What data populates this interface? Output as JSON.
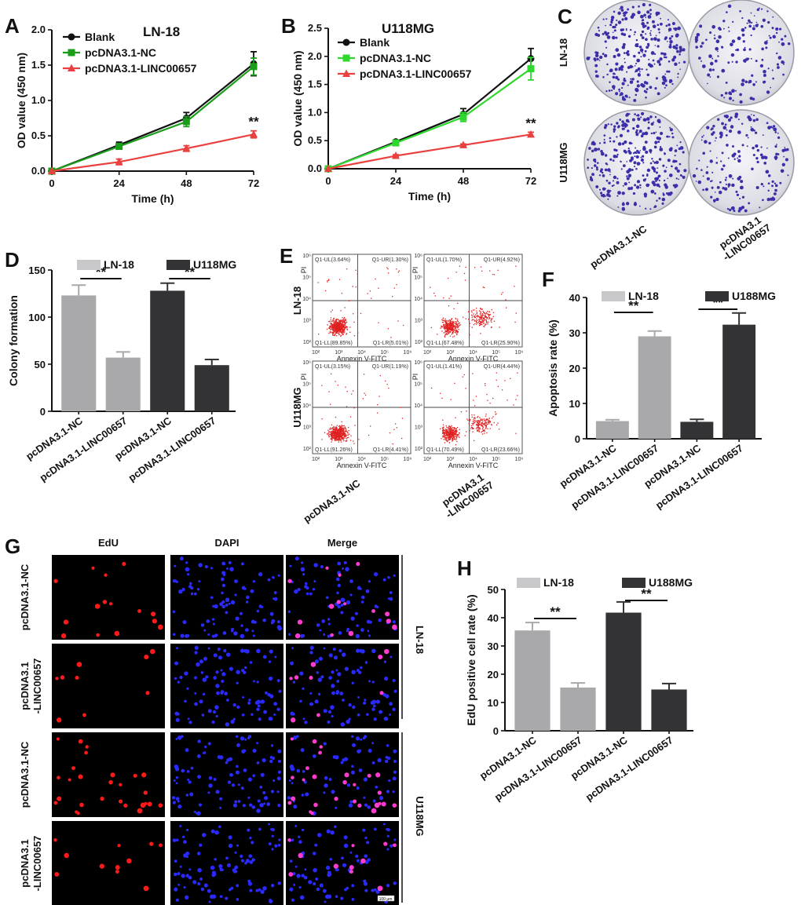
{
  "panels": {
    "A": "A",
    "B": "B",
    "C": "C",
    "D": "D",
    "E": "E",
    "F": "F",
    "G": "G",
    "H": "H"
  },
  "colors": {
    "blank": "#111111",
    "nc": "#1a9e1a",
    "linc": "#e8413f",
    "bar_light": "#a9a9ac",
    "bar_dark": "#333336",
    "crystal": "#3a2fa8",
    "plate": "#e4e4ea",
    "edu": "#ff1a1a",
    "dapi": "#2a2aff",
    "merge": "#ff3ccf"
  },
  "panelC": {
    "row_labels": [
      "LN-18",
      "U118MG"
    ],
    "col_labels": [
      "pcDNA3.1-NC",
      "pcDNA3.1\n-LINC00657"
    ],
    "colony_density": [
      [
        0.9,
        0.45
      ],
      [
        0.95,
        0.55
      ]
    ]
  },
  "panelE": {
    "row_labels": [
      "LN-18",
      "U118MG"
    ],
    "col_labels": [
      "pcDNA3.1-NC",
      "pcDNA3.1\n-LINC00657"
    ],
    "x_axis": "Annexin V-FITC",
    "y_axis": "PI",
    "ticks": [
      "10²",
      "10³",
      "10⁴",
      "10⁵",
      "10⁶"
    ],
    "quadrants": [
      [
        {
          "ul": "Q1-UL(3.64%)",
          "ur": "Q1-UR(1.30%)",
          "ll": "Q1-LL(89.85%)",
          "lr": "Q1-LR(5.01%)"
        },
        {
          "ul": "Q1-UL(1.70%)",
          "ur": "Q1-UR(4.92%)",
          "ll": "Q1-LL(67.48%)",
          "lr": "Q1-LR(25.90%)"
        }
      ],
      [
        {
          "ul": "Q1-UL(3.15%)",
          "ur": "Q1-UR(1.19%)",
          "ll": "Q1-LL(91.26%)",
          "lr": "Q1-LR(4.41%)"
        },
        {
          "ul": "Q1-UL(1.41%)",
          "ur": "Q1-UR(4.44%)",
          "ll": "Q1-LL(70.49%)",
          "lr": "Q1-LR(23.66%)"
        }
      ]
    ]
  },
  "panelG": {
    "col_headers": [
      "EdU",
      "DAPI",
      "Merge"
    ],
    "row_labels": [
      "pcDNA3.1-NC",
      "pcDNA3.1\n-LINC00657",
      "pcDNA3.1-NC",
      "pcDNA3.1\n-LINC00657"
    ],
    "group_labels": [
      "LN-18",
      "U118MG"
    ],
    "scale_bar": "100 μm",
    "edu_counts": [
      16,
      9,
      30,
      12
    ]
  },
  "chart_data": [
    {
      "id": "A",
      "type": "line",
      "title": "LN-18",
      "xlabel": "Time (h)",
      "ylabel": "OD value (450 nm)",
      "x": [
        0,
        24,
        48,
        72
      ],
      "xticks": [
        "0",
        "24",
        "48",
        "72"
      ],
      "ylim": [
        0,
        2.0
      ],
      "yticks": [
        "0.0",
        "0.5",
        "1.0",
        "1.5",
        "2.0"
      ],
      "series": [
        {
          "name": "Blank",
          "color": "#111111",
          "marker": "circle",
          "values": [
            0,
            0.37,
            0.75,
            1.52
          ],
          "err": [
            0,
            0.04,
            0.08,
            0.17
          ]
        },
        {
          "name": "pcDNA3.1-NC",
          "color": "#1a9e1a",
          "marker": "square",
          "values": [
            0,
            0.35,
            0.7,
            1.48
          ],
          "err": [
            0,
            0.04,
            0.07,
            0.12
          ]
        },
        {
          "name": "pcDNA3.1-LINC00657",
          "color": "#e8413f",
          "marker": "triangle",
          "values": [
            0,
            0.13,
            0.32,
            0.52
          ],
          "err": [
            0,
            0.04,
            0.04,
            0.05
          ]
        }
      ],
      "significance": "**"
    },
    {
      "id": "B",
      "type": "line",
      "title": "U118MG",
      "xlabel": "Time (h)",
      "ylabel": "OD value (450 nm)",
      "x": [
        0,
        24,
        48,
        72
      ],
      "xticks": [
        "0",
        "24",
        "48",
        "72"
      ],
      "ylim": [
        0,
        2.5
      ],
      "yticks": [
        "0.0",
        "0.5",
        "1.0",
        "1.5",
        "2.0",
        "2.5"
      ],
      "series": [
        {
          "name": "Blank",
          "color": "#111111",
          "marker": "circle",
          "values": [
            0,
            0.48,
            0.97,
            1.96
          ],
          "err": [
            0,
            0.03,
            0.1,
            0.18
          ]
        },
        {
          "name": "pcDNA3.1-NC",
          "color": "#2fd82f",
          "marker": "square",
          "values": [
            0,
            0.46,
            0.92,
            1.78
          ],
          "err": [
            0,
            0.03,
            0.08,
            0.2
          ]
        },
        {
          "name": "pcDNA3.1-LINC00657",
          "color": "#e8413f",
          "marker": "triangle",
          "values": [
            0,
            0.23,
            0.42,
            0.61
          ],
          "err": [
            0,
            0.02,
            0.02,
            0.04
          ]
        }
      ],
      "significance": "**"
    },
    {
      "id": "D",
      "type": "bar",
      "ylabel": "Colony formation",
      "ylim": [
        0,
        150
      ],
      "yticks": [
        "0",
        "50",
        "100",
        "150"
      ],
      "categories": [
        "pcDNA3.1-NC",
        "pcDNA3.1-LINC00657",
        "pcDNA3.1-NC",
        "pcDNA3.1-LINC00657"
      ],
      "values": [
        123,
        57,
        128,
        49
      ],
      "err": [
        11,
        6,
        8,
        6
      ],
      "groups": [
        "LN-18",
        "LN-18",
        "U118MG",
        "U118MG"
      ],
      "legend": [
        "LN-18",
        "U118MG"
      ],
      "significance": [
        "**",
        "**"
      ]
    },
    {
      "id": "F",
      "type": "bar",
      "ylabel": "Apoptosis rate (%)",
      "ylim": [
        0,
        40
      ],
      "yticks": [
        "0",
        "10",
        "20",
        "30",
        "40"
      ],
      "categories": [
        "pcDNA3.1-NC",
        "pcDNA3.1-LINC00657",
        "pcDNA3.1-NC",
        "pcDNA3.1-LINC00657"
      ],
      "values": [
        5,
        29,
        4.8,
        32.3
      ],
      "err": [
        0.4,
        1.5,
        0.7,
        3.3
      ],
      "groups": [
        "LN-18",
        "LN-18",
        "U188MG",
        "U188MG"
      ],
      "legend": [
        "LN-18",
        "U188MG"
      ],
      "significance": [
        "**",
        "**"
      ]
    },
    {
      "id": "H",
      "type": "bar",
      "ylabel": "EdU positive cell rate (%)",
      "ylim": [
        0,
        50
      ],
      "yticks": [
        "0",
        "10",
        "20",
        "30",
        "40",
        "50"
      ],
      "categories": [
        "pcDNA3.1-NC",
        "pcDNA3.1-LINC00657",
        "pcDNA3.1-NC",
        "pcDNA3.1-LINC00657"
      ],
      "values": [
        35.5,
        15.3,
        41.8,
        14.6
      ],
      "err": [
        2.8,
        1.6,
        3.8,
        2.1
      ],
      "groups": [
        "LN-18",
        "LN-18",
        "U188MG",
        "U188MG"
      ],
      "legend": [
        "LN-18",
        "U188MG"
      ],
      "significance": [
        "**",
        "**"
      ]
    }
  ]
}
